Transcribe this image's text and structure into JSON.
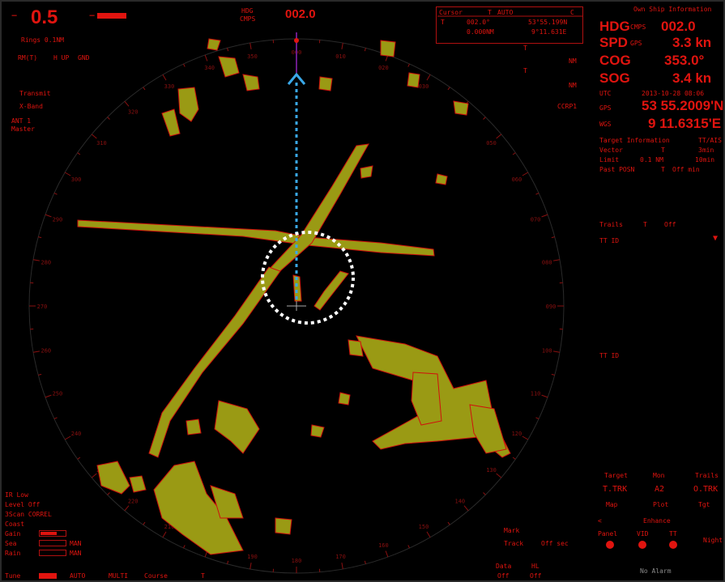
{
  "colors": {
    "accent": "#e0140f",
    "echo": "#9a9a14",
    "heading_line": "#3aa8e8",
    "dim": "#8a1010"
  },
  "top_left": {
    "range": "0.5",
    "rings": "Rings 0.1NM",
    "mode_rmtr": "RM(T)",
    "mode_hup": "H UP",
    "mode_gnd": "GND",
    "transmit": "Transmit",
    "band": "X-Band",
    "antenna": "ANT 1",
    "mode_master": "Master"
  },
  "heading_readout": {
    "hdg_label": "HDG",
    "gyro_label": "CMPS",
    "value": "002.0"
  },
  "cursor_box": {
    "title": "Cursor",
    "t_label": "T",
    "mode": "AUTO",
    "c_label": "C",
    "bearing": "002.0°",
    "bearing_t": "T",
    "lat": "53°55.199N",
    "range_val": "0.000NM",
    "lon": "9°11.631E"
  },
  "own_ship": {
    "title": "Own Ship Information",
    "hdg_label": "HDG",
    "hdg_source": "CMPS",
    "hdg_value": "002.0",
    "spd_label": "SPD",
    "spd_source": "GPS",
    "spd_value": "3.3 kn",
    "cog_label": "COG",
    "cog_value": "353.0°",
    "sog_label": "SOG",
    "sog_value": "3.4 kn",
    "utc_label": "UTC",
    "utc_value": "2013-10-28 08:06",
    "gps_label": "GPS",
    "lat_value": "53 55.2009'N",
    "datum_label": "WGS",
    "lon_value": "9 11.6315'E"
  },
  "target_info": {
    "title": "Target Information",
    "mode": "TT/AIS",
    "vector_label": "Vector",
    "vector_t": "T",
    "vector_val": "3min",
    "limit_label": "Limit",
    "limit_range": "0.1 NM",
    "limit_time": "10min",
    "past_label": "Past POSN",
    "past_t": "T",
    "past_val": "Off min",
    "trails_label": "Trails",
    "trails_t": "T",
    "trails_val": "Off",
    "tt_id_1": "TT ID",
    "tt_id_2": "TT ID"
  },
  "mid_right": {
    "nm_1": "NM",
    "nm_2": "NM",
    "t_1": "T",
    "t_2": "T",
    "ccrp": "CCRP1"
  },
  "bottom_left": {
    "ir": "IR Low",
    "level": "Level Off",
    "scan": "3Scan CORREL",
    "coast": "Coast",
    "gain": "Gain",
    "sea": "Sea",
    "rain": "Rain",
    "tune": "Tune",
    "sea_man": "MAN",
    "rain_man": "MAN",
    "tune_auto": "AUTO",
    "multi": "MULTI",
    "course": "Course",
    "course_t": "T"
  },
  "bottom_mid": {
    "mark": "Mark",
    "track": "Track",
    "off_sec": "Off sec",
    "data": "Data",
    "data_val": "Off",
    "hl": "HL",
    "hl_val": "Off"
  },
  "bottom_right": {
    "target": "Target",
    "mon": "Mon",
    "trails": "Trails",
    "ttrk": "T.TRK",
    "a2": "A2",
    "otrk": "O.TRK",
    "map": "Map",
    "plot": "Plot",
    "tgt": "Tgt",
    "lt": "<",
    "enhance": "Enhance",
    "panel": "Panel",
    "vid": "VID",
    "tt": "TT",
    "night": "Night",
    "alarm": "No Alarm"
  },
  "compass_ticks": [
    "000",
    "010",
    "020",
    "030",
    "040",
    "050",
    "060",
    "070",
    "080",
    "090",
    "100",
    "110",
    "120",
    "130",
    "140",
    "150",
    "160",
    "170",
    "180",
    "190",
    "200",
    "210",
    "220",
    "230",
    "240",
    "250",
    "260",
    "270",
    "280",
    "290",
    "300",
    "310",
    "320",
    "330",
    "340",
    "350"
  ]
}
